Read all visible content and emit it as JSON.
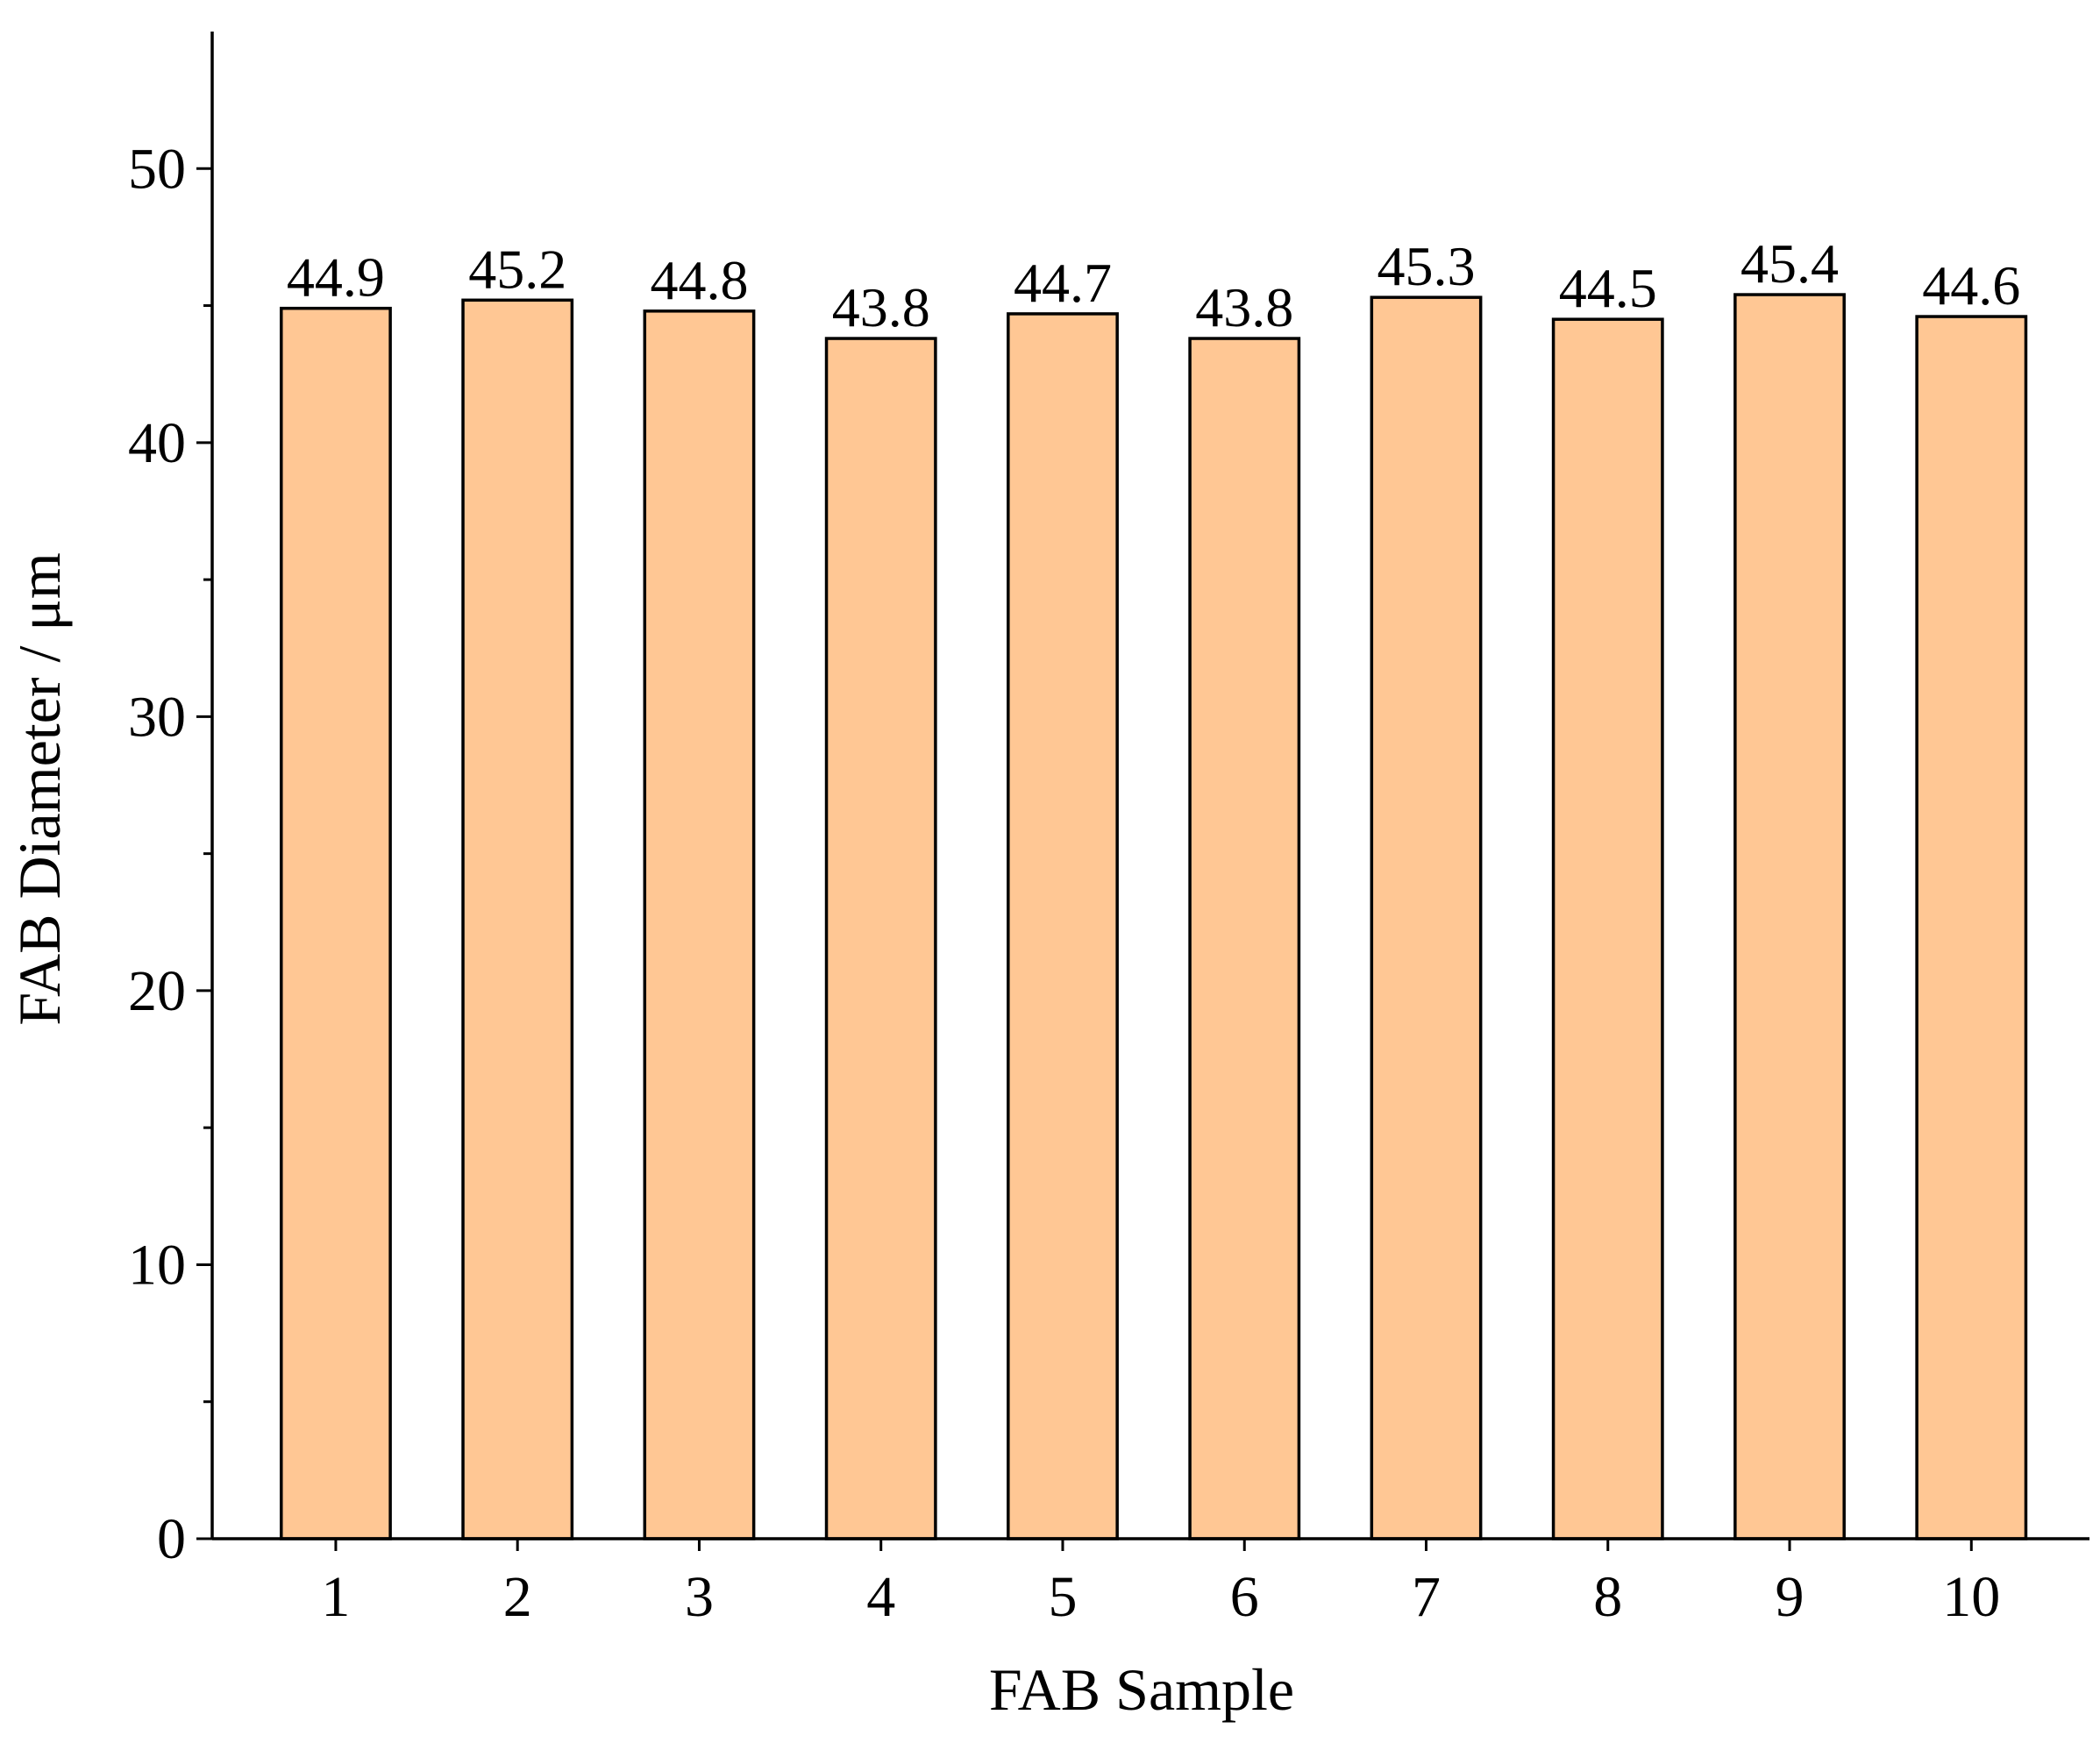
{
  "chart_data": {
    "type": "bar",
    "categories": [
      "1",
      "2",
      "3",
      "4",
      "5",
      "6",
      "7",
      "8",
      "9",
      "10"
    ],
    "values": [
      44.9,
      45.2,
      44.8,
      43.8,
      44.7,
      43.8,
      45.3,
      44.5,
      45.4,
      44.6
    ],
    "data_labels": [
      "44.9",
      "45.2",
      "44.8",
      "43.8",
      "44.7",
      "43.8",
      "45.3",
      "44.5",
      "45.4",
      "44.6"
    ],
    "xlabel": "FAB Sample",
    "ylabel": "FAB Diameter / μm",
    "ylim": [
      0,
      55
    ],
    "yticks": [
      "0",
      "10",
      "20",
      "30",
      "40",
      "50"
    ],
    "grid": false,
    "legend": "none",
    "colors": {
      "bar_fill": "#FFC794",
      "bar_stroke": "#000000",
      "axis": "#000000"
    }
  }
}
